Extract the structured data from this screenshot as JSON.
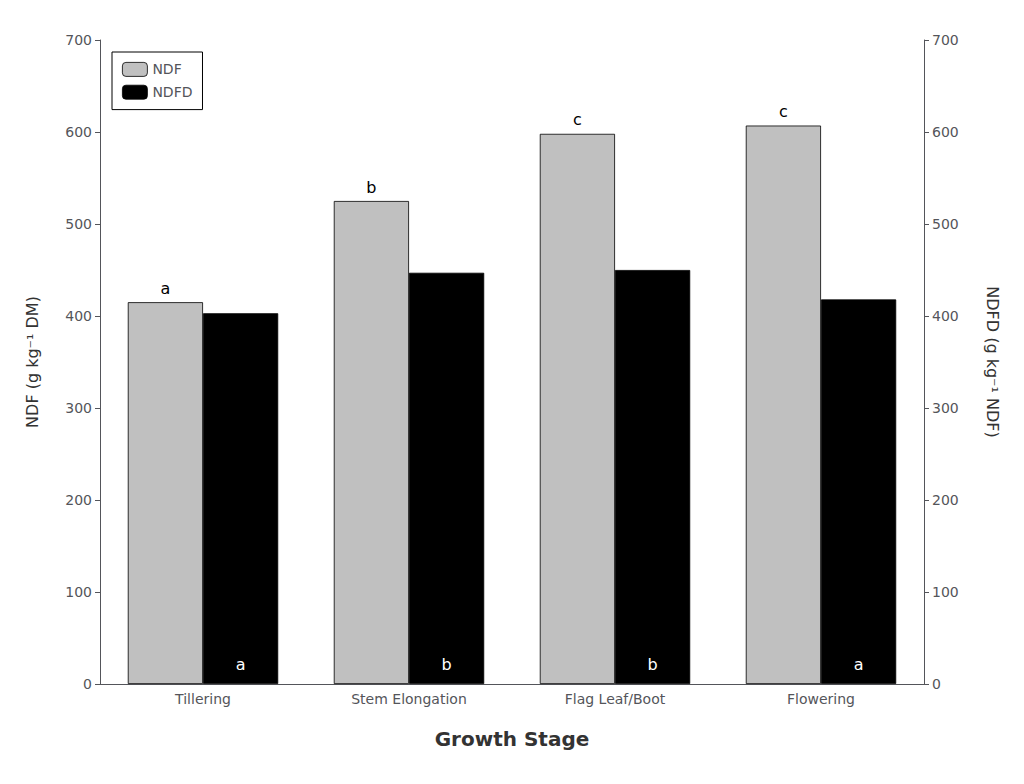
{
  "chart_data": {
    "type": "bar",
    "categories": [
      "Tillering",
      "Stem Elongation",
      "Flag Leaf/Boot",
      "Flowering"
    ],
    "series": [
      {
        "name": "NDF",
        "color": "#c0c0c0",
        "values": [
          415,
          525,
          598,
          607
        ],
        "letters": [
          "a",
          "b",
          "c",
          "c"
        ]
      },
      {
        "name": "NDFD",
        "color": "#000000",
        "values": [
          403,
          447,
          450,
          418
        ],
        "letters": [
          "a",
          "b",
          "b",
          "a"
        ],
        "axis": "y2"
      }
    ],
    "xlabel": "Growth Stage",
    "ylabel": "NDF (g kg⁻¹ DM)",
    "y2label": "NDFD (g kg⁻¹ NDF)",
    "ylim": [
      0,
      700
    ],
    "yticks": [
      0,
      100,
      200,
      300,
      400,
      500,
      600,
      700
    ],
    "y2lim": [
      0,
      700
    ],
    "y2ticks": [
      0,
      100,
      200,
      300,
      400,
      500,
      600,
      700
    ],
    "legend": "upper left",
    "grid": false
  }
}
